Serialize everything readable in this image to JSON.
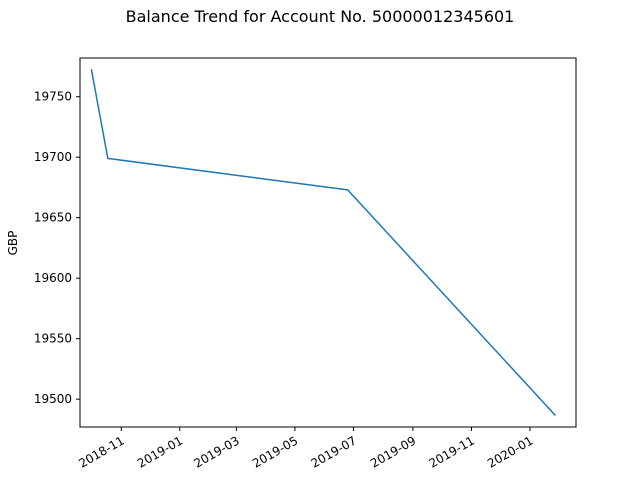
{
  "chart_data": {
    "type": "line",
    "title": "Balance Trend for Account No. 50000012345601",
    "xlabel": "",
    "ylabel": "GBP",
    "x_ticks": [
      "2018-11",
      "2019-01",
      "2019-03",
      "2019-05",
      "2019-07",
      "2019-09",
      "2019-11",
      "2020-01"
    ],
    "y_ticks": [
      19500,
      19550,
      19600,
      19650,
      19700,
      19750
    ],
    "xlim": [
      "2018-09-19",
      "2020-02-18"
    ],
    "ylim": [
      19477,
      19782
    ],
    "grid": false,
    "legend": "none",
    "series": [
      {
        "color": "#1f77b4",
        "points": [
          {
            "x": "2018-10-01",
            "y": 19772
          },
          {
            "x": "2018-10-18",
            "y": 19699
          },
          {
            "x": "2019-06-25",
            "y": 19673
          },
          {
            "x": "2020-01-27",
            "y": 19487
          }
        ]
      }
    ]
  }
}
